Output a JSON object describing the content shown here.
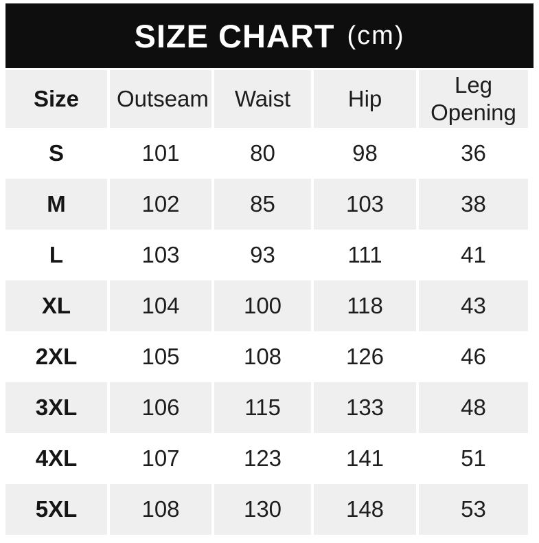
{
  "banner": {
    "title": "SIZE CHART",
    "unit": "(cm)"
  },
  "table": {
    "columns": [
      "Size",
      "Outseam",
      "Waist",
      "Hip",
      "Leg Opening"
    ],
    "rows": [
      {
        "size": "S",
        "values": [
          "101",
          "80",
          "98",
          "36"
        ]
      },
      {
        "size": "M",
        "values": [
          "102",
          "85",
          "103",
          "38"
        ]
      },
      {
        "size": "L",
        "values": [
          "103",
          "93",
          "111",
          "41"
        ]
      },
      {
        "size": "XL",
        "values": [
          "104",
          "100",
          "118",
          "43"
        ]
      },
      {
        "size": "2XL",
        "values": [
          "105",
          "108",
          "126",
          "46"
        ]
      },
      {
        "size": "3XL",
        "values": [
          "106",
          "115",
          "133",
          "48"
        ]
      },
      {
        "size": "4XL",
        "values": [
          "107",
          "123",
          "141",
          "51"
        ]
      },
      {
        "size": "5XL",
        "values": [
          "108",
          "130",
          "148",
          "53"
        ]
      }
    ]
  },
  "colors": {
    "banner_bg": "#0e0e0e",
    "banner_text": "#ffffff",
    "row_alt_bg": "#efefef",
    "text": "#1d1d1d",
    "page_bg": "#ffffff"
  },
  "chart_data": {
    "type": "table",
    "title": "SIZE CHART (cm)",
    "columns": [
      "Size",
      "Outseam",
      "Waist",
      "Hip",
      "Leg Opening"
    ],
    "rows": [
      [
        "S",
        101,
        80,
        98,
        36
      ],
      [
        "M",
        102,
        85,
        103,
        38
      ],
      [
        "L",
        103,
        93,
        111,
        41
      ],
      [
        "XL",
        104,
        100,
        118,
        43
      ],
      [
        "2XL",
        105,
        108,
        126,
        46
      ],
      [
        "3XL",
        106,
        115,
        133,
        48
      ],
      [
        "4XL",
        107,
        123,
        141,
        51
      ],
      [
        "5XL",
        108,
        130,
        148,
        53
      ]
    ]
  }
}
